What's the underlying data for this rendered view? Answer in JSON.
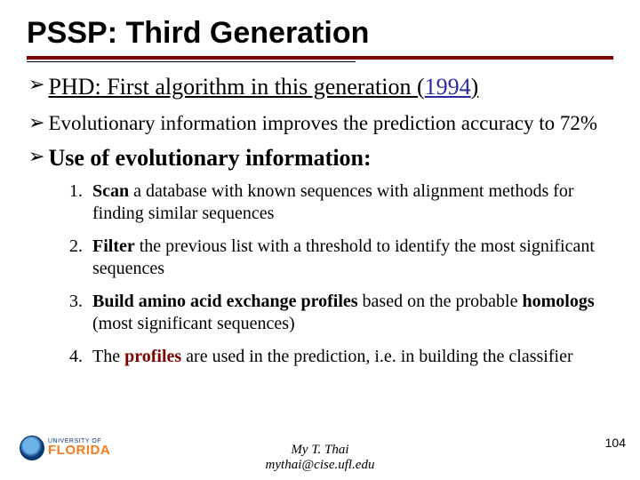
{
  "title": "PSSP: Third Generation",
  "bullets": {
    "b1_prefix": "PHD:",
    "b1_mid": " First algorithm in this generation (",
    "b1_year": "1994",
    "b1_suffix": ")",
    "b2": "Evolutionary information improves the prediction accuracy to 72%",
    "b3": "Use of evolutionary information:"
  },
  "steps": {
    "s1_num": "1.",
    "s1_a": "Scan",
    "s1_b": " a database with known sequences with alignment methods for finding similar sequences",
    "s2_num": "2.",
    "s2_a": "Filter",
    "s2_b": " the previous list with a threshold to identify the most significant sequences",
    "s3_num": "3.",
    "s3_a": "Build amino acid exchange profiles",
    "s3_b": " based on the probable ",
    "s3_c": "homologs",
    "s3_d": " (most significant sequences)",
    "s4_num": "4.",
    "s4_a": "The ",
    "s4_b": "profiles",
    "s4_c": "  are used in the prediction, i.e. in building the classifier"
  },
  "footer": {
    "name": "My T. Thai",
    "email": "mythai@cise.ufl.edu"
  },
  "logo": {
    "small": "UNIVERSITY OF",
    "big": "FLORIDA"
  },
  "page": "104",
  "arrow": "➢"
}
